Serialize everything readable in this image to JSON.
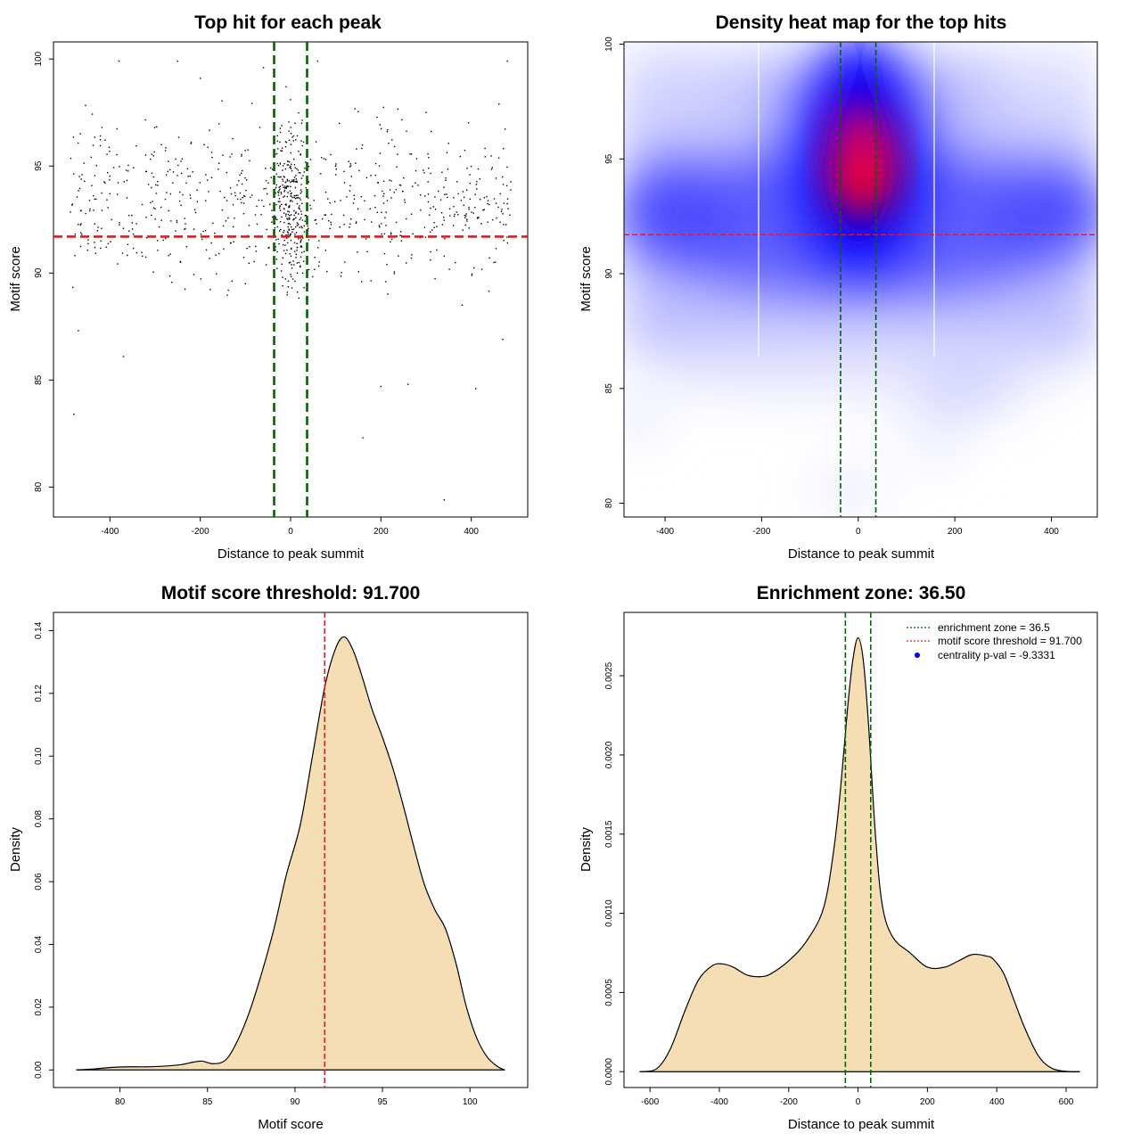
{
  "chart_data": [
    {
      "type": "scatter",
      "title": "Top hit for each peak",
      "xlabel": "Distance to peak summit",
      "ylabel": "Motif score",
      "xlim": [
        -525,
        525
      ],
      "ylim": [
        78.6,
        100.8
      ],
      "xticks": [
        "-400",
        "-200",
        "0",
        "200",
        "400"
      ],
      "yticks": [
        "80",
        "85",
        "90",
        "95",
        "100"
      ],
      "vlines": [
        -36.5,
        36.5
      ],
      "hline": 91.7,
      "vline_color": "#006400",
      "hline_color": "#e31a1c",
      "n_points": 1000,
      "sample_points": [
        [
          -480,
          83.4
        ],
        [
          -470,
          87.3
        ],
        [
          -370,
          86.1
        ],
        [
          -380,
          99.9
        ],
        [
          -250,
          99.9
        ],
        [
          -200,
          99.1
        ],
        [
          -150,
          95.5
        ],
        [
          -100,
          89.5
        ],
        [
          -60,
          99.6
        ],
        [
          -30,
          92.5
        ],
        [
          0,
          95.0
        ],
        [
          10,
          97.0
        ],
        [
          20,
          93.5
        ],
        [
          30,
          91.0
        ],
        [
          60,
          99.9
        ],
        [
          100,
          95.0
        ],
        [
          160,
          82.3
        ],
        [
          200,
          84.7
        ],
        [
          260,
          84.8
        ],
        [
          340,
          79.4
        ],
        [
          410,
          84.6
        ],
        [
          470,
          86.9
        ],
        [
          480,
          99.9
        ],
        [
          380,
          88.5
        ],
        [
          300,
          97.5
        ],
        [
          -300,
          93.0
        ],
        [
          -420,
          91.5
        ],
        [
          440,
          93.2
        ],
        [
          -10,
          98.7
        ],
        [
          15,
          90.0
        ]
      ]
    },
    {
      "type": "heatmap",
      "title": "Density heat map for the top hits",
      "xlabel": "Distance to peak summit",
      "ylabel": "Motif score",
      "xlim": [
        -485,
        495
      ],
      "ylim": [
        79.4,
        100.1
      ],
      "xticks": [
        "-400",
        "-200",
        "0",
        "200",
        "400"
      ],
      "yticks": [
        "80",
        "85",
        "90",
        "95",
        "100"
      ],
      "vlines": [
        -36.5,
        36.5
      ],
      "hline": 91.7,
      "colors": [
        "#ffffff",
        "#0000ff",
        "#ff0000"
      ],
      "density_peaks": [
        {
          "x": 0,
          "y": 94.0,
          "level": 1.0
        },
        {
          "x": -380,
          "y": 92.4,
          "level": 0.45
        },
        {
          "x": 390,
          "y": 92.6,
          "level": 0.45
        },
        {
          "x": 0,
          "y": 89.5,
          "level": 0.35
        }
      ]
    },
    {
      "type": "area",
      "title": "Motif score threshold: 91.700",
      "xlabel": "Motif score",
      "ylabel": "Density",
      "xlim": [
        76.2,
        103.3
      ],
      "ylim": [
        -0.0056,
        0.1458
      ],
      "xticks": [
        "80",
        "85",
        "90",
        "95",
        "100"
      ],
      "yticks": [
        "0.00",
        "0.02",
        "0.04",
        "0.06",
        "0.08",
        "0.10",
        "0.12",
        "0.14"
      ],
      "vline": 91.7,
      "fill": "#f5deb3",
      "x": [
        77.5,
        78.5,
        79.5,
        80.5,
        81.5,
        82.5,
        83.5,
        84.2,
        84.7,
        85.3,
        86.0,
        86.6,
        87.3,
        88.0,
        88.8,
        89.5,
        90.3,
        91.0,
        91.7,
        92.3,
        92.8,
        93.3,
        93.8,
        94.4,
        95.0,
        95.6,
        96.2,
        96.8,
        97.4,
        98.0,
        98.6,
        99.2,
        99.8,
        100.4,
        101.0,
        101.6,
        102.0
      ],
      "y": [
        0.0,
        0.0003,
        0.0008,
        0.001,
        0.001,
        0.0012,
        0.0017,
        0.0025,
        0.0028,
        0.002,
        0.003,
        0.008,
        0.017,
        0.029,
        0.045,
        0.062,
        0.078,
        0.1,
        0.122,
        0.134,
        0.138,
        0.134,
        0.126,
        0.115,
        0.106,
        0.096,
        0.084,
        0.071,
        0.059,
        0.051,
        0.045,
        0.034,
        0.02,
        0.01,
        0.004,
        0.001,
        0.0
      ]
    },
    {
      "type": "area",
      "title": "Enrichment zone: 36.50",
      "xlabel": "Distance to peak summit",
      "ylabel": "Density",
      "xlim": [
        -675,
        690
      ],
      "ylim": [
        -0.0001,
        0.0029
      ],
      "xticks": [
        "-600",
        "-400",
        "-200",
        "0",
        "200",
        "400",
        "600"
      ],
      "yticks": [
        "0.0000",
        "0.0005",
        "0.0010",
        "0.0015",
        "0.0020",
        "0.0025"
      ],
      "vlines": [
        -36.5,
        36.5
      ],
      "fill": "#f5deb3",
      "legend": {
        "position": "top-right",
        "entries": [
          {
            "label": "enrichment zone = 36.5",
            "color": "#006400",
            "style": "dotted-line"
          },
          {
            "label": "motif score threshold = 91.700",
            "color": "#e31a1c",
            "style": "dotted-line"
          },
          {
            "label": "centrality p-val = -9.3331",
            "color": "#0000ff",
            "style": "point"
          }
        ]
      },
      "x": [
        -630,
        -580,
        -540,
        -500,
        -460,
        -420,
        -390,
        -360,
        -320,
        -280,
        -250,
        -200,
        -150,
        -100,
        -70,
        -50,
        -30,
        -15,
        0,
        15,
        30,
        50,
        70,
        100,
        150,
        200,
        250,
        290,
        330,
        370,
        390,
        420,
        450,
        480,
        520,
        560,
        610,
        640
      ],
      "y": [
        0.0,
        2e-05,
        0.00015,
        0.00038,
        0.00058,
        0.00067,
        0.00068,
        0.00066,
        0.00061,
        0.0006,
        0.00062,
        0.0007,
        0.00082,
        0.00103,
        0.0014,
        0.0018,
        0.0023,
        0.0026,
        0.00274,
        0.0026,
        0.0022,
        0.0015,
        0.00105,
        0.00085,
        0.00075,
        0.00066,
        0.00066,
        0.0007,
        0.00074,
        0.00073,
        0.00071,
        0.00062,
        0.00045,
        0.00028,
        0.0001,
        2e-05,
        0.0,
        0.0
      ]
    }
  ]
}
